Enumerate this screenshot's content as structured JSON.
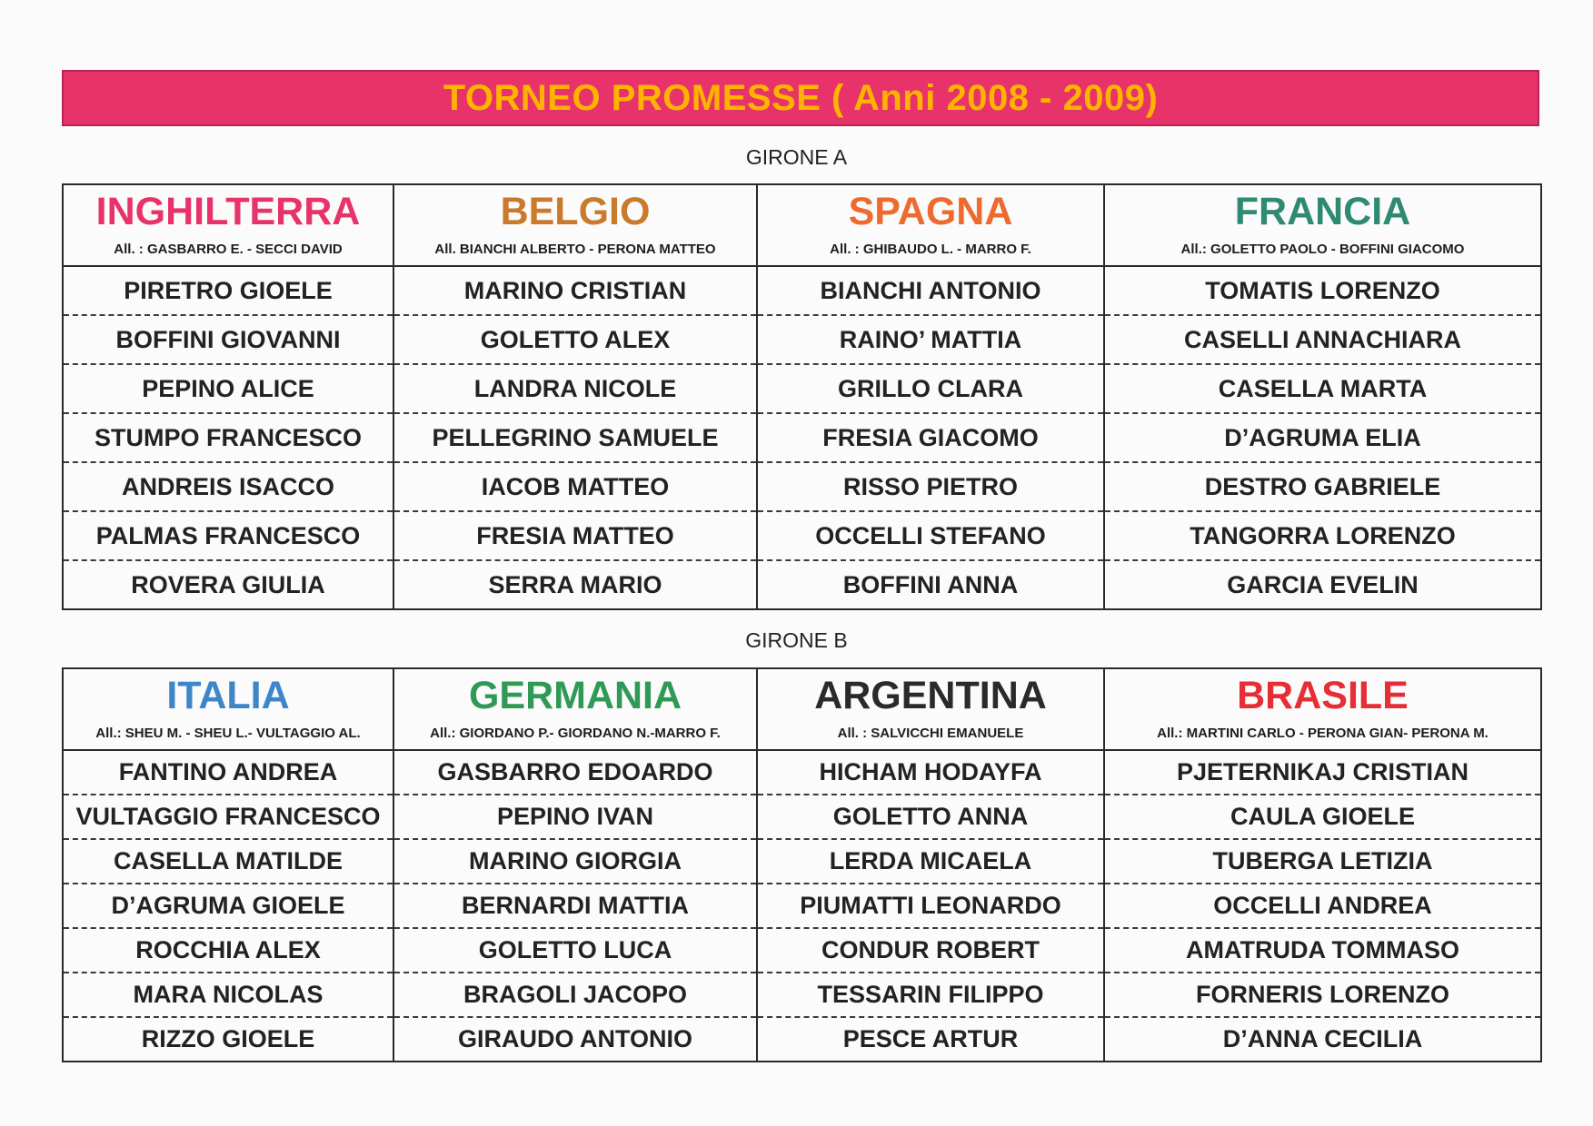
{
  "title": "TORNEO PROMESSE ( Anni 2008 - 2009)",
  "groups": [
    {
      "label": "GIRONE A",
      "teams": [
        {
          "name": "INGHILTERRA",
          "color": "#e8336a",
          "coach": "All. : GASBARRO E. - SECCI DAVID",
          "players": [
            "PIRETRO GIOELE",
            "BOFFINI GIOVANNI",
            "PEPINO ALICE",
            "STUMPO FRANCESCO",
            "ANDREIS ISACCO",
            "PALMAS FRANCESCO",
            "ROVERA GIULIA"
          ]
        },
        {
          "name": "BELGIO",
          "color": "#c97a2c",
          "coach": "All. BIANCHI ALBERTO - PERONA MATTEO",
          "players": [
            "MARINO CRISTIAN",
            "GOLETTO ALEX",
            "LANDRA NICOLE",
            "PELLEGRINO SAMUELE",
            "IACOB MATTEO",
            "FRESIA MATTEO",
            "SERRA MARIO"
          ]
        },
        {
          "name": "SPAGNA",
          "color": "#ee6a2e",
          "coach": "All. : GHIBAUDO L. - MARRO F.",
          "players": [
            "BIANCHI ANTONIO",
            "RAINO’ MATTIA",
            "GRILLO CLARA",
            "FRESIA GIACOMO",
            "RISSO PIETRO",
            "OCCELLI STEFANO",
            "BOFFINI ANNA"
          ]
        },
        {
          "name": "FRANCIA",
          "color": "#2e8a72",
          "coach": "All.:  GOLETTO PAOLO -  BOFFINI GIACOMO",
          "players": [
            "TOMATIS LORENZO",
            "CASELLI ANNACHIARA",
            "CASELLA MARTA",
            "D’AGRUMA ELIA",
            "DESTRO GABRIELE",
            "TANGORRA LORENZO",
            "GARCIA EVELIN"
          ]
        }
      ]
    },
    {
      "label": "GIRONE B",
      "teams": [
        {
          "name": "ITALIA",
          "color": "#3e86c8",
          "coach": "All.: SHEU M. - SHEU L.- VULTAGGIO AL.",
          "players": [
            "FANTINO ANDREA",
            "VULTAGGIO FRANCESCO",
            "CASELLA MATILDE",
            "D’AGRUMA GIOELE",
            "ROCCHIA ALEX",
            "MARA NICOLAS",
            "RIZZO GIOELE"
          ]
        },
        {
          "name": "GERMANIA",
          "color": "#2e9a55",
          "coach": "All.: GIORDANO P.- GIORDANO N.-MARRO F.",
          "players": [
            "GASBARRO EDOARDO",
            "PEPINO IVAN",
            "MARINO GIORGIA",
            "BERNARDI MATTIA",
            "GOLETTO LUCA",
            "BRAGOLI JACOPO",
            "GIRAUDO ANTONIO"
          ]
        },
        {
          "name": "ARGENTINA",
          "color": "#2a2a2a",
          "coach": "All. :       SALVICCHI EMANUELE",
          "players": [
            "HICHAM HODAYFA",
            "GOLETTO ANNA",
            "LERDA MICAELA",
            "PIUMATTI LEONARDO",
            "CONDUR ROBERT",
            "TESSARIN FILIPPO",
            "PESCE ARTUR"
          ]
        },
        {
          "name": "BRASILE",
          "color": "#e52e36",
          "coach": "All.: MARTINI CARLO - PERONA GIAN- PERONA M.",
          "players": [
            "PJETERNIKAJ CRISTIAN",
            "CAULA GIOELE",
            "TUBERGA LETIZIA",
            "OCCELLI ANDREA",
            "AMATRUDA TOMMASO",
            "FORNERIS LORENZO",
            "D’ANNA CECILIA"
          ]
        }
      ]
    }
  ]
}
